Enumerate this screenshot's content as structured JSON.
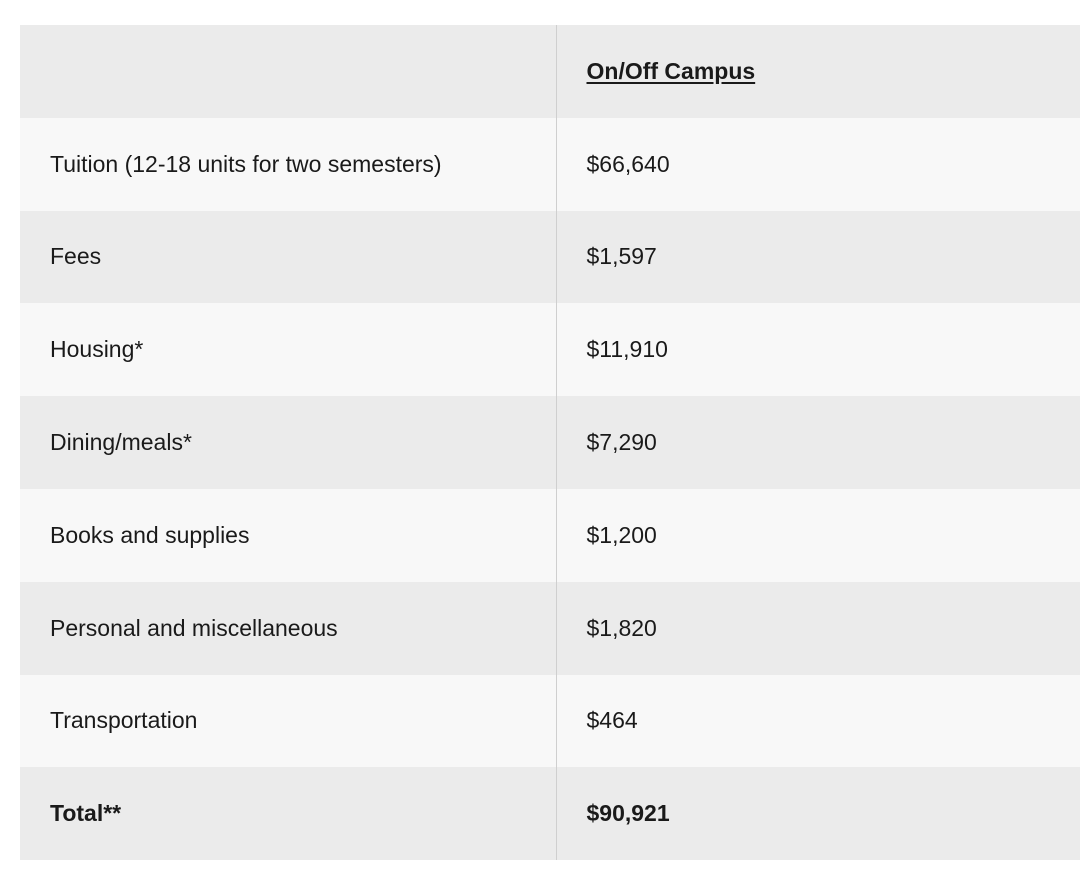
{
  "table": {
    "header": {
      "label": "",
      "value": "On/Off Campus"
    },
    "rows": [
      {
        "label": "Tuition (12-18 units for two semesters)",
        "value": "$66,640"
      },
      {
        "label": "Fees",
        "value": "$1,597"
      },
      {
        "label": "Housing*",
        "value": "$11,910"
      },
      {
        "label": "Dining/meals*",
        "value": "$7,290"
      },
      {
        "label": "Books and supplies",
        "value": "$1,200"
      },
      {
        "label": "Personal and miscellaneous",
        "value": "$1,820"
      },
      {
        "label": "Transportation",
        "value": "$464"
      }
    ],
    "total": {
      "label": "Total**",
      "value": "$90,921"
    }
  },
  "colors": {
    "row_dark": "#ebebeb",
    "row_light": "#f8f8f8",
    "divider": "#cfcfcf",
    "text": "#1a1a1a"
  }
}
